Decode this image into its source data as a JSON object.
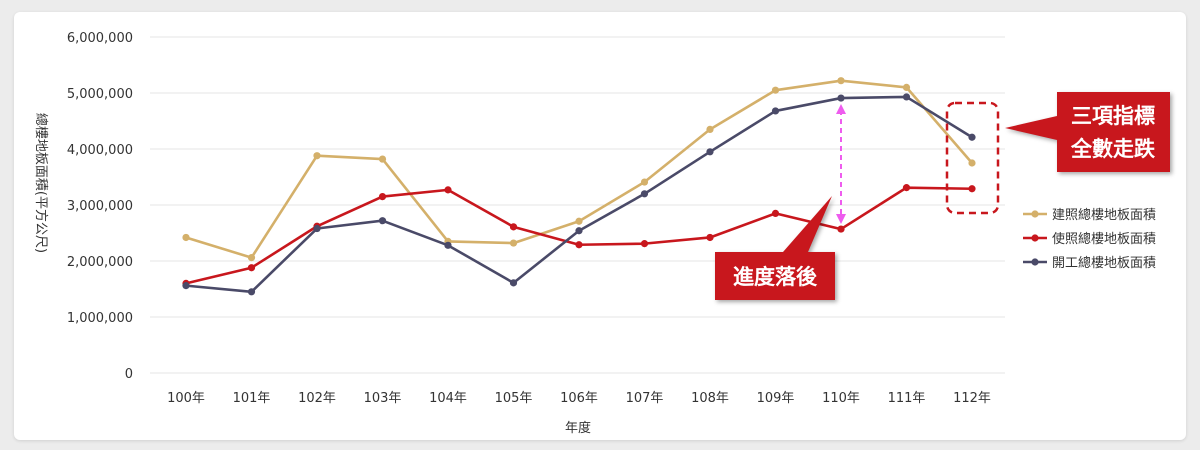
{
  "chart_data": {
    "type": "line",
    "title": "",
    "xlabel": "年度",
    "ylabel": "總樓地板面積(平方公尺)",
    "ylim": [
      0,
      6000000
    ],
    "yticks": [
      0,
      1000000,
      2000000,
      3000000,
      4000000,
      5000000,
      6000000
    ],
    "ytick_labels": [
      "0",
      "1,000,000",
      "2,000,000",
      "3,000,000",
      "4,000,000",
      "5,000,000",
      "6,000,000"
    ],
    "categories": [
      "100年",
      "101年",
      "102年",
      "103年",
      "104年",
      "105年",
      "106年",
      "107年",
      "108年",
      "109年",
      "110年",
      "111年",
      "112年"
    ],
    "grid": "horizontal",
    "legend_position": "right",
    "series": [
      {
        "name": "建照總樓地板面積",
        "color": "#d4b06a",
        "values": [
          2420000,
          2060000,
          3880000,
          3820000,
          2350000,
          2320000,
          2710000,
          3410000,
          4350000,
          5050000,
          5220000,
          5100000,
          3750000
        ]
      },
      {
        "name": "使照總樓地板面積",
        "color": "#c8171d",
        "values": [
          1600000,
          1880000,
          2620000,
          3150000,
          3270000,
          2610000,
          2290000,
          2310000,
          2420000,
          2850000,
          2570000,
          3310000,
          3290000
        ]
      },
      {
        "name": "開工總樓地板面積",
        "color": "#4a4a68",
        "values": [
          1560000,
          1450000,
          2580000,
          2720000,
          2280000,
          1610000,
          2540000,
          3200000,
          3950000,
          4680000,
          4910000,
          4930000,
          4210000
        ]
      }
    ],
    "annotations": {
      "lag_label": "進度落後",
      "decline_line1": "三項指標",
      "decline_line2": "全數走跌",
      "callout_color": "#c8171d",
      "arrow_color": "#ee5cee"
    }
  }
}
